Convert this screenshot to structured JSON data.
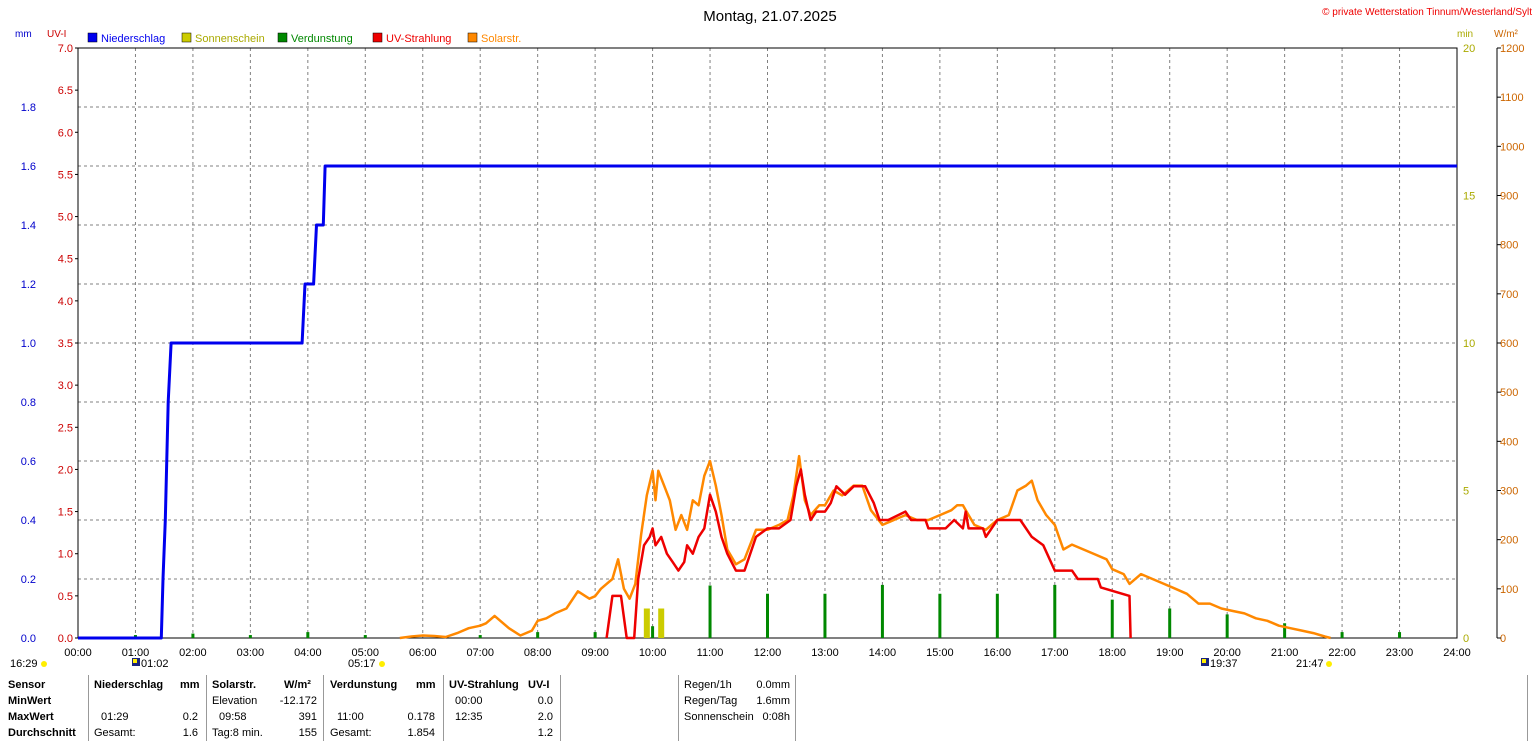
{
  "title": "Montag, 21.07.2025",
  "copyright": "© private Wetterstation Tinnum/Westerland/Sylt",
  "colors": {
    "niederschlag": "#0000ee",
    "sonnenschein": "#cccc00",
    "verdunstung": "#008800",
    "uv": "#ee0000",
    "solar": "#ff8800",
    "grid": "#808080"
  },
  "legend": [
    {
      "label": "Niederschlag",
      "color": "#0000ee"
    },
    {
      "label": "Sonnenschein",
      "color": "#cccc00"
    },
    {
      "label": "Verdunstung",
      "color": "#008800"
    },
    {
      "label": "UV-Strahlung",
      "color": "#ee0000"
    },
    {
      "label": "Solarstr.",
      "color": "#ff8800"
    }
  ],
  "axis_units": {
    "left_mm": "mm",
    "left_uv": "UV-I",
    "right_min": "min",
    "right_wm2": "W/m²"
  },
  "sun_times": {
    "left_time": "16:29",
    "moonrise_label": "01:02",
    "sunrise": "05:17",
    "moonset_label": "19:37",
    "sunset": "21:47"
  },
  "chart_data": {
    "type": "line",
    "x_axis": {
      "range_hours": [
        0,
        24
      ],
      "ticks": [
        "00:00",
        "01:00",
        "02:00",
        "03:00",
        "04:00",
        "05:00",
        "06:00",
        "07:00",
        "08:00",
        "09:00",
        "10:00",
        "11:00",
        "12:00",
        "13:00",
        "14:00",
        "15:00",
        "16:00",
        "17:00",
        "18:00",
        "19:00",
        "20:00",
        "21:00",
        "22:00",
        "23:00",
        "24:00"
      ]
    },
    "y_axes": {
      "mm": {
        "range": [
          0,
          2.0
        ],
        "ticks": [
          "0.0",
          "0.2",
          "0.4",
          "0.6",
          "0.8",
          "1.0",
          "1.2",
          "1.4",
          "1.6",
          "1.8"
        ]
      },
      "uv": {
        "range": [
          0,
          7.0
        ],
        "ticks": [
          "0.0",
          "0.5",
          "1.0",
          "1.5",
          "2.0",
          "2.5",
          "3.0",
          "3.5",
          "4.0",
          "4.5",
          "5.0",
          "5.5",
          "6.0",
          "6.5",
          "7.0"
        ]
      },
      "min": {
        "range": [
          0,
          20
        ],
        "ticks": [
          "0",
          "5",
          "10",
          "15",
          "20"
        ]
      },
      "wm2": {
        "range": [
          0,
          1200
        ],
        "ticks": [
          "0",
          "100",
          "200",
          "300",
          "400",
          "500",
          "600",
          "700",
          "800",
          "900",
          "1000",
          "1100",
          "1200"
        ]
      }
    },
    "series": [
      {
        "name": "Niederschlag",
        "axis": "mm",
        "style": "step",
        "points": [
          [
            0,
            0
          ],
          [
            1.45,
            0
          ],
          [
            1.48,
            0.2
          ],
          [
            1.52,
            0.4
          ],
          [
            1.57,
            0.8
          ],
          [
            1.62,
            1.0
          ],
          [
            3.9,
            1.0
          ],
          [
            3.95,
            1.2
          ],
          [
            4.1,
            1.2
          ],
          [
            4.15,
            1.4
          ],
          [
            4.27,
            1.4
          ],
          [
            4.3,
            1.6
          ],
          [
            24,
            1.6
          ]
        ]
      },
      {
        "name": "UV-Strahlung",
        "axis": "uv",
        "points": [
          [
            9.2,
            0
          ],
          [
            9.3,
            0.5
          ],
          [
            9.45,
            0.5
          ],
          [
            9.55,
            0
          ],
          [
            9.68,
            0
          ],
          [
            9.75,
            0.7
          ],
          [
            9.85,
            1.1
          ],
          [
            9.95,
            1.2
          ],
          [
            10.0,
            1.3
          ],
          [
            10.05,
            1.1
          ],
          [
            10.15,
            1.2
          ],
          [
            10.25,
            1.0
          ],
          [
            10.35,
            0.9
          ],
          [
            10.45,
            0.8
          ],
          [
            10.55,
            0.9
          ],
          [
            10.6,
            1.1
          ],
          [
            10.7,
            1.0
          ],
          [
            10.8,
            1.2
          ],
          [
            10.9,
            1.3
          ],
          [
            11.0,
            1.7
          ],
          [
            11.1,
            1.5
          ],
          [
            11.2,
            1.2
          ],
          [
            11.3,
            1.0
          ],
          [
            11.45,
            0.8
          ],
          [
            11.6,
            0.8
          ],
          [
            11.8,
            1.2
          ],
          [
            12.0,
            1.3
          ],
          [
            12.2,
            1.3
          ],
          [
            12.4,
            1.4
          ],
          [
            12.5,
            1.8
          ],
          [
            12.58,
            2.0
          ],
          [
            12.65,
            1.7
          ],
          [
            12.75,
            1.4
          ],
          [
            12.85,
            1.5
          ],
          [
            13.0,
            1.5
          ],
          [
            13.1,
            1.6
          ],
          [
            13.2,
            1.8
          ],
          [
            13.35,
            1.7
          ],
          [
            13.5,
            1.8
          ],
          [
            13.7,
            1.8
          ],
          [
            13.85,
            1.6
          ],
          [
            13.95,
            1.4
          ],
          [
            14.1,
            1.4
          ],
          [
            14.4,
            1.5
          ],
          [
            14.5,
            1.4
          ],
          [
            14.75,
            1.4
          ],
          [
            14.8,
            1.3
          ],
          [
            15.1,
            1.3
          ],
          [
            15.25,
            1.4
          ],
          [
            15.4,
            1.3
          ],
          [
            15.45,
            1.5
          ],
          [
            15.5,
            1.3
          ],
          [
            15.75,
            1.3
          ],
          [
            15.8,
            1.2
          ],
          [
            16.0,
            1.4
          ],
          [
            16.4,
            1.4
          ],
          [
            16.6,
            1.2
          ],
          [
            16.8,
            1.1
          ],
          [
            17.0,
            0.8
          ],
          [
            17.3,
            0.8
          ],
          [
            17.4,
            0.7
          ],
          [
            17.75,
            0.7
          ],
          [
            17.8,
            0.6
          ],
          [
            18.3,
            0.5
          ],
          [
            18.32,
            0
          ]
        ]
      },
      {
        "name": "Solarstr.",
        "axis": "wm2",
        "points": [
          [
            5.6,
            0
          ],
          [
            5.8,
            3
          ],
          [
            6.0,
            5
          ],
          [
            6.2,
            4
          ],
          [
            6.4,
            2
          ],
          [
            6.6,
            10
          ],
          [
            6.8,
            20
          ],
          [
            7.0,
            25
          ],
          [
            7.1,
            30
          ],
          [
            7.25,
            45
          ],
          [
            7.35,
            35
          ],
          [
            7.5,
            20
          ],
          [
            7.7,
            5
          ],
          [
            7.9,
            15
          ],
          [
            8.0,
            35
          ],
          [
            8.15,
            40
          ],
          [
            8.3,
            50
          ],
          [
            8.5,
            60
          ],
          [
            8.7,
            95
          ],
          [
            8.9,
            80
          ],
          [
            9.0,
            85
          ],
          [
            9.1,
            100
          ],
          [
            9.2,
            110
          ],
          [
            9.3,
            120
          ],
          [
            9.4,
            160
          ],
          [
            9.5,
            100
          ],
          [
            9.6,
            80
          ],
          [
            9.7,
            110
          ],
          [
            9.8,
            210
          ],
          [
            9.9,
            290
          ],
          [
            10.0,
            340
          ],
          [
            10.05,
            280
          ],
          [
            10.1,
            340
          ],
          [
            10.2,
            310
          ],
          [
            10.3,
            280
          ],
          [
            10.4,
            220
          ],
          [
            10.5,
            250
          ],
          [
            10.6,
            220
          ],
          [
            10.7,
            280
          ],
          [
            10.8,
            270
          ],
          [
            10.9,
            330
          ],
          [
            11.0,
            360
          ],
          [
            11.1,
            310
          ],
          [
            11.2,
            250
          ],
          [
            11.3,
            180
          ],
          [
            11.45,
            150
          ],
          [
            11.6,
            160
          ],
          [
            11.8,
            220
          ],
          [
            12.0,
            220
          ],
          [
            12.2,
            230
          ],
          [
            12.35,
            240
          ],
          [
            12.45,
            290
          ],
          [
            12.55,
            370
          ],
          [
            12.65,
            280
          ],
          [
            12.75,
            250
          ],
          [
            12.9,
            270
          ],
          [
            13.0,
            270
          ],
          [
            13.15,
            300
          ],
          [
            13.3,
            290
          ],
          [
            13.5,
            310
          ],
          [
            13.65,
            310
          ],
          [
            13.8,
            260
          ],
          [
            14.0,
            230
          ],
          [
            14.2,
            240
          ],
          [
            14.4,
            250
          ],
          [
            14.6,
            240
          ],
          [
            14.8,
            240
          ],
          [
            15.0,
            250
          ],
          [
            15.2,
            260
          ],
          [
            15.3,
            270
          ],
          [
            15.4,
            270
          ],
          [
            15.5,
            250
          ],
          [
            15.6,
            230
          ],
          [
            15.8,
            220
          ],
          [
            16.0,
            240
          ],
          [
            16.2,
            250
          ],
          [
            16.35,
            300
          ],
          [
            16.5,
            310
          ],
          [
            16.6,
            320
          ],
          [
            16.7,
            280
          ],
          [
            16.85,
            250
          ],
          [
            17.0,
            230
          ],
          [
            17.15,
            180
          ],
          [
            17.3,
            190
          ],
          [
            17.5,
            180
          ],
          [
            17.7,
            170
          ],
          [
            17.9,
            160
          ],
          [
            18.0,
            140
          ],
          [
            18.2,
            130
          ],
          [
            18.3,
            110
          ],
          [
            18.5,
            130
          ],
          [
            18.7,
            120
          ],
          [
            18.9,
            110
          ],
          [
            19.1,
            100
          ],
          [
            19.3,
            90
          ],
          [
            19.5,
            70
          ],
          [
            19.7,
            70
          ],
          [
            19.9,
            60
          ],
          [
            20.1,
            55
          ],
          [
            20.3,
            50
          ],
          [
            20.5,
            40
          ],
          [
            20.7,
            35
          ],
          [
            20.9,
            25
          ],
          [
            21.1,
            20
          ],
          [
            21.3,
            15
          ],
          [
            21.5,
            10
          ],
          [
            21.7,
            3
          ],
          [
            21.8,
            0
          ]
        ]
      }
    ],
    "bars": [
      {
        "name": "Verdunstung",
        "axis": "mm",
        "values": [
          [
            1,
            0.01
          ],
          [
            2,
            0.015
          ],
          [
            3,
            0.01
          ],
          [
            4,
            0.02
          ],
          [
            5,
            0.01
          ],
          [
            7,
            0.01
          ],
          [
            8,
            0.02
          ],
          [
            9,
            0.02
          ],
          [
            10,
            0.04
          ],
          [
            11,
            0.178
          ],
          [
            12,
            0.15
          ],
          [
            13,
            0.15
          ],
          [
            14,
            0.18
          ],
          [
            15,
            0.15
          ],
          [
            16,
            0.15
          ],
          [
            17,
            0.18
          ],
          [
            18,
            0.13
          ],
          [
            19,
            0.1
          ],
          [
            20,
            0.08
          ],
          [
            21,
            0.05
          ],
          [
            22,
            0.02
          ],
          [
            23,
            0.02
          ]
        ]
      },
      {
        "name": "Sonnenschein",
        "axis": "min",
        "values": [
          [
            9.9,
            1.0
          ],
          [
            10.15,
            1.0
          ]
        ]
      }
    ]
  },
  "stats": {
    "headers": {
      "sensor": "Sensor",
      "niederschlag": "Niederschlag",
      "mm1": "mm",
      "solar": "Solarstr.",
      "wm2": "W/m²",
      "verdunstung": "Verdunstung",
      "mm2": "mm",
      "uv": "UV-Strahlung",
      "uvi": "UV-I"
    },
    "row_labels": {
      "min": "MinWert",
      "max": "MaxWert",
      "avg": "Durchschnitt"
    },
    "niederschlag": {
      "max_time": "01:29",
      "max_val": "0.2",
      "total_label": "Gesamt:",
      "total_val": "1.6"
    },
    "solar": {
      "elev_label": "Elevation",
      "elev_val": "-12.172",
      "max_time": "09:58",
      "max_val": "391",
      "tag_label": "Tag:8 min.",
      "avg_val": "155"
    },
    "verdunstung": {
      "max_time": "11:00",
      "max_val": "0.178",
      "total_label": "Gesamt:",
      "total_val": "1.854"
    },
    "uv": {
      "min_time": "00:00",
      "min_val": "0.0",
      "max_time": "12:35",
      "max_val": "2.0",
      "avg_val": "1.2"
    },
    "summary": {
      "regen1h_label": "Regen/1h",
      "regen1h_val": "0.0mm",
      "regentag_label": "Regen/Tag",
      "regentag_val": "1.6mm",
      "sonne_label": "Sonnenschein",
      "sonne_val": "0:08h"
    }
  }
}
